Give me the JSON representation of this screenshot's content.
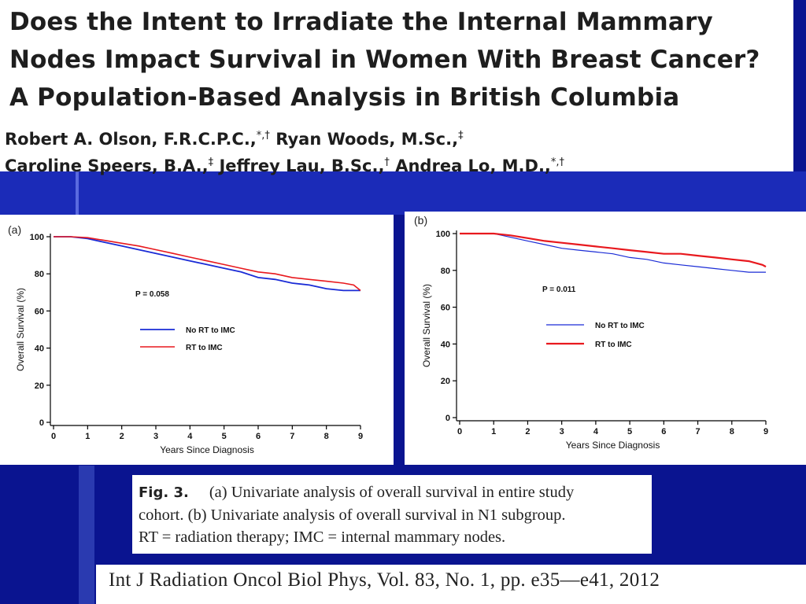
{
  "title": {
    "lines": [
      "Does the Intent to Irradiate the Internal Mammary",
      "Nodes Impact Survival in Women With Breast Cancer?",
      "A Population-Based Analysis in British Columbia"
    ]
  },
  "authors": {
    "line1": [
      {
        "name": "Robert A. Olson, F.R.C.P.C.,",
        "sup": "*,†"
      },
      {
        "name": " Ryan Woods, M.Sc.,",
        "sup": "‡"
      }
    ],
    "line2": [
      {
        "name": "Caroline Speers, B.A.,",
        "sup": "‡"
      },
      {
        "name": " Jeffrey Lau, B.Sc.,",
        "sup": "†"
      },
      {
        "name": " Andrea Lo, M.D.,",
        "sup": "*,†"
      }
    ]
  },
  "colors": {
    "background": "#0a1490",
    "no_rt": "#1a2bd6",
    "rt": "#e8191e"
  },
  "chart_data": [
    {
      "type": "line",
      "panel_label": "(a)",
      "xlabel": "Years Since Diagnosis",
      "ylabel": "Overall Survival (%)",
      "xlim": [
        0,
        9
      ],
      "ylim": [
        0,
        100
      ],
      "xticks": [
        0,
        1,
        2,
        3,
        4,
        5,
        6,
        7,
        8,
        9
      ],
      "yticks": [
        0,
        20,
        40,
        60,
        80,
        100
      ],
      "annotation": "P = 0.058",
      "legend_position": "center",
      "series": [
        {
          "name": "No RT to IMC",
          "color": "#1a2bd6",
          "x": [
            0,
            0.5,
            1,
            1.5,
            2,
            2.5,
            3,
            3.5,
            4,
            4.5,
            5,
            5.5,
            6,
            6.5,
            7,
            7.5,
            8,
            8.5,
            8.7,
            9
          ],
          "y": [
            100,
            100,
            99,
            97,
            95,
            93,
            91,
            89,
            87,
            85,
            83,
            81,
            78,
            77,
            75,
            74,
            72,
            71,
            71,
            71
          ]
        },
        {
          "name": "RT to IMC",
          "color": "#e8191e",
          "x": [
            0,
            0.5,
            1,
            1.5,
            2,
            2.5,
            3,
            3.5,
            4,
            4.5,
            5,
            5.5,
            6,
            6.5,
            7,
            7.5,
            8,
            8.5,
            8.8,
            9
          ],
          "y": [
            100,
            100,
            99.5,
            98,
            96.5,
            95,
            93,
            91,
            89,
            87,
            85,
            83,
            81,
            80,
            78,
            77,
            76,
            75,
            74,
            71
          ]
        }
      ]
    },
    {
      "type": "line",
      "panel_label": "(b)",
      "xlabel": "Years Since Diagnosis",
      "ylabel": "Overall Survival (%)",
      "xlim": [
        0,
        9
      ],
      "ylim": [
        0,
        100
      ],
      "xticks": [
        0,
        1,
        2,
        3,
        4,
        5,
        6,
        7,
        8,
        9
      ],
      "yticks": [
        0,
        20,
        40,
        60,
        80,
        100
      ],
      "annotation": "P = 0.011",
      "legend_position": "center",
      "series": [
        {
          "name": "No RT to IMC",
          "color": "#1a2bd6",
          "x": [
            0,
            0.5,
            1,
            1.5,
            2,
            2.5,
            3,
            3.5,
            4,
            4.5,
            5,
            5.5,
            6,
            6.5,
            7,
            7.5,
            8,
            8.5,
            9
          ],
          "y": [
            100,
            100,
            100,
            98,
            96,
            94,
            92,
            91,
            90,
            89,
            87,
            86,
            84,
            83,
            82,
            81,
            80,
            79,
            79
          ]
        },
        {
          "name": "RT to IMC",
          "color": "#e8191e",
          "x": [
            0,
            0.5,
            1,
            1.5,
            2,
            2.5,
            3,
            3.5,
            4,
            4.5,
            5,
            5.5,
            6,
            6.5,
            7,
            7.5,
            8,
            8.5,
            8.9,
            9
          ],
          "y": [
            100,
            100,
            100,
            99,
            97.5,
            96,
            95,
            94,
            93,
            92,
            91,
            90,
            89,
            89,
            88,
            87,
            86,
            85,
            83,
            82
          ]
        }
      ]
    }
  ],
  "caption": {
    "fig_label": "Fig. 3.",
    "line1": "(a) Univariate analysis of overall survival in entire study",
    "line2": "cohort. (b) Univariate analysis of overall survival in N1 subgroup.",
    "line3": "RT = radiation therapy; IMC = internal mammary nodes."
  },
  "journal": "Int J Radiation Oncol Biol Phys, Vol. 83, No. 1, pp. e35—e41, 2012"
}
